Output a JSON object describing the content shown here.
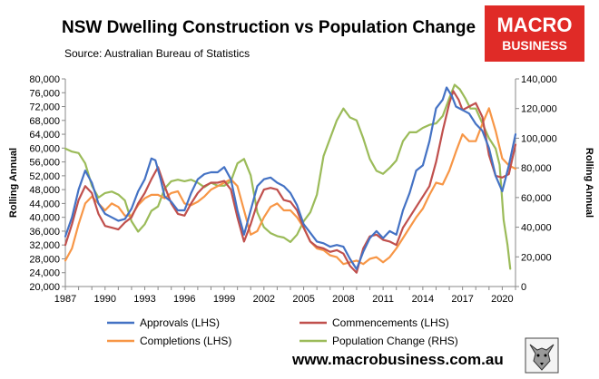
{
  "title": "NSW Dwelling Construction vs Population Change",
  "subtitle": "Source: Australian Bureau of Statistics",
  "logo": {
    "line1": "MACRO",
    "line2": "BUSINESS"
  },
  "website": "www.macrobusiness.com.au",
  "colors": {
    "approvals": "#4472c4",
    "commencements": "#c0504d",
    "completions": "#f79646",
    "population": "#9bbb59"
  },
  "chart_data": {
    "type": "line",
    "xlim": [
      1987,
      2021
    ],
    "x_ticks": [
      "1987",
      "1990",
      "1993",
      "1996",
      "1999",
      "2002",
      "2005",
      "2008",
      "2011",
      "2014",
      "2017",
      "2020"
    ],
    "left_axis": {
      "label": "Rolling Annual",
      "ylim": [
        20000,
        80000
      ],
      "ticks": [
        "20,000",
        "24,000",
        "28,000",
        "32,000",
        "36,000",
        "40,000",
        "44,000",
        "48,000",
        "52,000",
        "56,000",
        "60,000",
        "64,000",
        "68,000",
        "72,000",
        "76,000",
        "80,000"
      ]
    },
    "right_axis": {
      "label": "Rolling Annual",
      "ylim": [
        0,
        140000
      ],
      "ticks": [
        "0",
        "20,000",
        "40,000",
        "60,000",
        "80,000",
        "100,000",
        "120,000",
        "140,000"
      ]
    },
    "series": [
      {
        "name": "Approvals (LHS)",
        "axis": "left",
        "color_key": "approvals",
        "points": [
          [
            1987.0,
            34500
          ],
          [
            1987.5,
            40000
          ],
          [
            1988.0,
            48000
          ],
          [
            1988.5,
            53500
          ],
          [
            1989.0,
            50000
          ],
          [
            1989.5,
            44000
          ],
          [
            1990.0,
            41000
          ],
          [
            1990.5,
            40000
          ],
          [
            1991.0,
            39000
          ],
          [
            1991.5,
            39500
          ],
          [
            1992.0,
            42500
          ],
          [
            1992.5,
            47500
          ],
          [
            1993.0,
            51000
          ],
          [
            1993.5,
            57000
          ],
          [
            1993.8,
            56500
          ],
          [
            1994.2,
            51000
          ],
          [
            1994.5,
            46000
          ],
          [
            1995.0,
            44500
          ],
          [
            1995.5,
            42000
          ],
          [
            1996.0,
            42000
          ],
          [
            1996.5,
            47000
          ],
          [
            1997.0,
            51000
          ],
          [
            1997.5,
            52500
          ],
          [
            1998.0,
            53000
          ],
          [
            1998.5,
            53000
          ],
          [
            1999.0,
            54500
          ],
          [
            1999.5,
            51000
          ],
          [
            2000.0,
            42000
          ],
          [
            2000.5,
            35000
          ],
          [
            2001.0,
            42000
          ],
          [
            2001.5,
            49000
          ],
          [
            2002.0,
            51000
          ],
          [
            2002.5,
            51500
          ],
          [
            2003.0,
            50000
          ],
          [
            2003.5,
            49000
          ],
          [
            2004.0,
            47000
          ],
          [
            2004.5,
            43500
          ],
          [
            2005.0,
            38000
          ],
          [
            2005.5,
            35500
          ],
          [
            2006.0,
            33000
          ],
          [
            2006.5,
            32500
          ],
          [
            2007.0,
            31500
          ],
          [
            2007.5,
            32000
          ],
          [
            2008.0,
            31500
          ],
          [
            2008.5,
            28000
          ],
          [
            2009.0,
            25000
          ],
          [
            2009.5,
            30000
          ],
          [
            2010.0,
            34000
          ],
          [
            2010.5,
            36000
          ],
          [
            2011.0,
            34000
          ],
          [
            2011.5,
            36000
          ],
          [
            2012.0,
            35000
          ],
          [
            2012.5,
            42000
          ],
          [
            2013.0,
            47000
          ],
          [
            2013.5,
            53500
          ],
          [
            2014.0,
            55000
          ],
          [
            2014.5,
            62000
          ],
          [
            2015.0,
            71500
          ],
          [
            2015.5,
            74000
          ],
          [
            2015.8,
            77500
          ],
          [
            2016.2,
            75000
          ],
          [
            2016.5,
            72000
          ],
          [
            2017.0,
            71000
          ],
          [
            2017.5,
            70000
          ],
          [
            2018.0,
            67000
          ],
          [
            2018.5,
            65000
          ],
          [
            2019.0,
            60000
          ],
          [
            2019.5,
            52000
          ],
          [
            2020.0,
            47500
          ],
          [
            2020.5,
            55000
          ],
          [
            2021.0,
            64000
          ]
        ]
      },
      {
        "name": "Commencements (LHS)",
        "axis": "left",
        "color_key": "commencements",
        "points": [
          [
            1987.0,
            32000
          ],
          [
            1987.5,
            38000
          ],
          [
            1988.0,
            45000
          ],
          [
            1988.5,
            49000
          ],
          [
            1989.0,
            47000
          ],
          [
            1989.5,
            41000
          ],
          [
            1990.0,
            37500
          ],
          [
            1990.5,
            37000
          ],
          [
            1991.0,
            36500
          ],
          [
            1991.5,
            38500
          ],
          [
            1992.0,
            40000
          ],
          [
            1992.5,
            44000
          ],
          [
            1993.0,
            47000
          ],
          [
            1993.5,
            51000
          ],
          [
            1994.0,
            54500
          ],
          [
            1994.5,
            49000
          ],
          [
            1995.0,
            44000
          ],
          [
            1995.5,
            41000
          ],
          [
            1996.0,
            40500
          ],
          [
            1996.5,
            44000
          ],
          [
            1997.0,
            47000
          ],
          [
            1997.5,
            49000
          ],
          [
            1998.0,
            50000
          ],
          [
            1998.5,
            50000
          ],
          [
            1999.0,
            50500
          ],
          [
            1999.5,
            48000
          ],
          [
            2000.0,
            40000
          ],
          [
            2000.5,
            33000
          ],
          [
            2001.0,
            38000
          ],
          [
            2001.5,
            44000
          ],
          [
            2002.0,
            48000
          ],
          [
            2002.5,
            48500
          ],
          [
            2003.0,
            48000
          ],
          [
            2003.5,
            45000
          ],
          [
            2004.0,
            44500
          ],
          [
            2004.5,
            42000
          ],
          [
            2005.0,
            37000
          ],
          [
            2005.5,
            33000
          ],
          [
            2006.0,
            31500
          ],
          [
            2006.5,
            31000
          ],
          [
            2007.0,
            30000
          ],
          [
            2007.5,
            30500
          ],
          [
            2008.0,
            29500
          ],
          [
            2008.5,
            26000
          ],
          [
            2009.0,
            24000
          ],
          [
            2009.5,
            31000
          ],
          [
            2010.0,
            34500
          ],
          [
            2010.5,
            35000
          ],
          [
            2011.0,
            33500
          ],
          [
            2011.5,
            33000
          ],
          [
            2012.0,
            32000
          ],
          [
            2012.5,
            37000
          ],
          [
            2013.0,
            40000
          ],
          [
            2013.5,
            43000
          ],
          [
            2014.0,
            46000
          ],
          [
            2014.5,
            49000
          ],
          [
            2015.0,
            56000
          ],
          [
            2015.5,
            65000
          ],
          [
            2016.0,
            73000
          ],
          [
            2016.3,
            76500
          ],
          [
            2016.7,
            74000
          ],
          [
            2017.0,
            71000
          ],
          [
            2017.5,
            72000
          ],
          [
            2018.0,
            73000
          ],
          [
            2018.5,
            69000
          ],
          [
            2019.0,
            58000
          ],
          [
            2019.5,
            52000
          ],
          [
            2020.0,
            51500
          ],
          [
            2020.5,
            52500
          ],
          [
            2021.0,
            61000
          ]
        ]
      },
      {
        "name": "Completions (LHS)",
        "axis": "left",
        "color_key": "completions",
        "points": [
          [
            1987.0,
            27500
          ],
          [
            1987.5,
            31000
          ],
          [
            1988.0,
            38000
          ],
          [
            1988.5,
            44000
          ],
          [
            1989.0,
            46000
          ],
          [
            1989.5,
            44000
          ],
          [
            1990.0,
            42000
          ],
          [
            1990.5,
            44000
          ],
          [
            1991.0,
            43000
          ],
          [
            1991.5,
            40500
          ],
          [
            1992.0,
            40500
          ],
          [
            1992.5,
            43500
          ],
          [
            1993.0,
            45500
          ],
          [
            1993.5,
            46500
          ],
          [
            1994.0,
            46500
          ],
          [
            1994.5,
            45500
          ],
          [
            1995.0,
            47000
          ],
          [
            1995.5,
            47500
          ],
          [
            1996.0,
            44000
          ],
          [
            1996.5,
            43500
          ],
          [
            1997.0,
            44500
          ],
          [
            1997.5,
            46000
          ],
          [
            1998.0,
            48000
          ],
          [
            1998.5,
            49000
          ],
          [
            1999.0,
            50000
          ],
          [
            1999.5,
            51000
          ],
          [
            2000.0,
            49000
          ],
          [
            2000.5,
            42000
          ],
          [
            2001.0,
            35000
          ],
          [
            2001.5,
            36000
          ],
          [
            2002.0,
            40000
          ],
          [
            2002.5,
            43000
          ],
          [
            2003.0,
            44000
          ],
          [
            2003.5,
            42000
          ],
          [
            2004.0,
            42000
          ],
          [
            2004.5,
            40000
          ],
          [
            2005.0,
            37000
          ],
          [
            2005.5,
            33000
          ],
          [
            2006.0,
            31000
          ],
          [
            2006.5,
            30500
          ],
          [
            2007.0,
            29000
          ],
          [
            2007.5,
            28500
          ],
          [
            2008.0,
            26500
          ],
          [
            2008.5,
            27000
          ],
          [
            2009.0,
            27500
          ],
          [
            2009.5,
            26500
          ],
          [
            2010.0,
            28000
          ],
          [
            2010.5,
            28500
          ],
          [
            2011.0,
            27000
          ],
          [
            2011.5,
            28500
          ],
          [
            2012.0,
            31000
          ],
          [
            2012.5,
            34000
          ],
          [
            2013.0,
            37000
          ],
          [
            2013.5,
            40000
          ],
          [
            2014.0,
            42500
          ],
          [
            2014.5,
            46500
          ],
          [
            2015.0,
            50000
          ],
          [
            2015.5,
            49500
          ],
          [
            2016.0,
            53500
          ],
          [
            2016.5,
            59000
          ],
          [
            2017.0,
            64000
          ],
          [
            2017.5,
            62000
          ],
          [
            2018.0,
            62000
          ],
          [
            2018.5,
            67000
          ],
          [
            2019.0,
            71500
          ],
          [
            2019.5,
            65000
          ],
          [
            2020.0,
            57000
          ],
          [
            2020.5,
            55000
          ],
          [
            2021.0,
            54000
          ]
        ]
      },
      {
        "name": "Population Change (RHS)",
        "axis": "right",
        "color_key": "population",
        "points": [
          [
            1987.0,
            93000
          ],
          [
            1987.5,
            91000
          ],
          [
            1988.0,
            90000
          ],
          [
            1988.5,
            83000
          ],
          [
            1989.0,
            68000
          ],
          [
            1989.5,
            60000
          ],
          [
            1990.0,
            63000
          ],
          [
            1990.5,
            64000
          ],
          [
            1991.0,
            62000
          ],
          [
            1991.5,
            58000
          ],
          [
            1992.0,
            44000
          ],
          [
            1992.5,
            37000
          ],
          [
            1993.0,
            42000
          ],
          [
            1993.5,
            51000
          ],
          [
            1994.0,
            54000
          ],
          [
            1994.5,
            66000
          ],
          [
            1995.0,
            71000
          ],
          [
            1995.5,
            72000
          ],
          [
            1996.0,
            71000
          ],
          [
            1996.5,
            72000
          ],
          [
            1997.0,
            70000
          ],
          [
            1997.5,
            67000
          ],
          [
            1998.0,
            70000
          ],
          [
            1998.5,
            68000
          ],
          [
            1999.0,
            68000
          ],
          [
            1999.5,
            71000
          ],
          [
            2000.0,
            83000
          ],
          [
            2000.5,
            86000
          ],
          [
            2001.0,
            75000
          ],
          [
            2001.5,
            50000
          ],
          [
            2002.0,
            40000
          ],
          [
            2002.5,
            36000
          ],
          [
            2003.0,
            34000
          ],
          [
            2003.5,
            33000
          ],
          [
            2004.0,
            30000
          ],
          [
            2004.5,
            35000
          ],
          [
            2005.0,
            44000
          ],
          [
            2005.5,
            50000
          ],
          [
            2006.0,
            62000
          ],
          [
            2006.5,
            88000
          ],
          [
            2007.0,
            100000
          ],
          [
            2007.5,
            112000
          ],
          [
            2008.0,
            120000
          ],
          [
            2008.5,
            114000
          ],
          [
            2009.0,
            112000
          ],
          [
            2009.5,
            100000
          ],
          [
            2010.0,
            86000
          ],
          [
            2010.5,
            78000
          ],
          [
            2011.0,
            76000
          ],
          [
            2011.5,
            80000
          ],
          [
            2012.0,
            85000
          ],
          [
            2012.5,
            98000
          ],
          [
            2013.0,
            104000
          ],
          [
            2013.5,
            104000
          ],
          [
            2014.0,
            107000
          ],
          [
            2014.5,
            109000
          ],
          [
            2015.0,
            110000
          ],
          [
            2015.5,
            115000
          ],
          [
            2016.0,
            127000
          ],
          [
            2016.4,
            136000
          ],
          [
            2016.8,
            133000
          ],
          [
            2017.2,
            127000
          ],
          [
            2017.6,
            120000
          ],
          [
            2018.0,
            120000
          ],
          [
            2018.5,
            110000
          ],
          [
            2019.0,
            100000
          ],
          [
            2019.5,
            93000
          ],
          [
            2019.8,
            82000
          ],
          [
            2020.1,
            45000
          ],
          [
            2020.4,
            28000
          ],
          [
            2020.6,
            12000
          ]
        ]
      }
    ],
    "legend_position": "bottom",
    "grid": false
  }
}
